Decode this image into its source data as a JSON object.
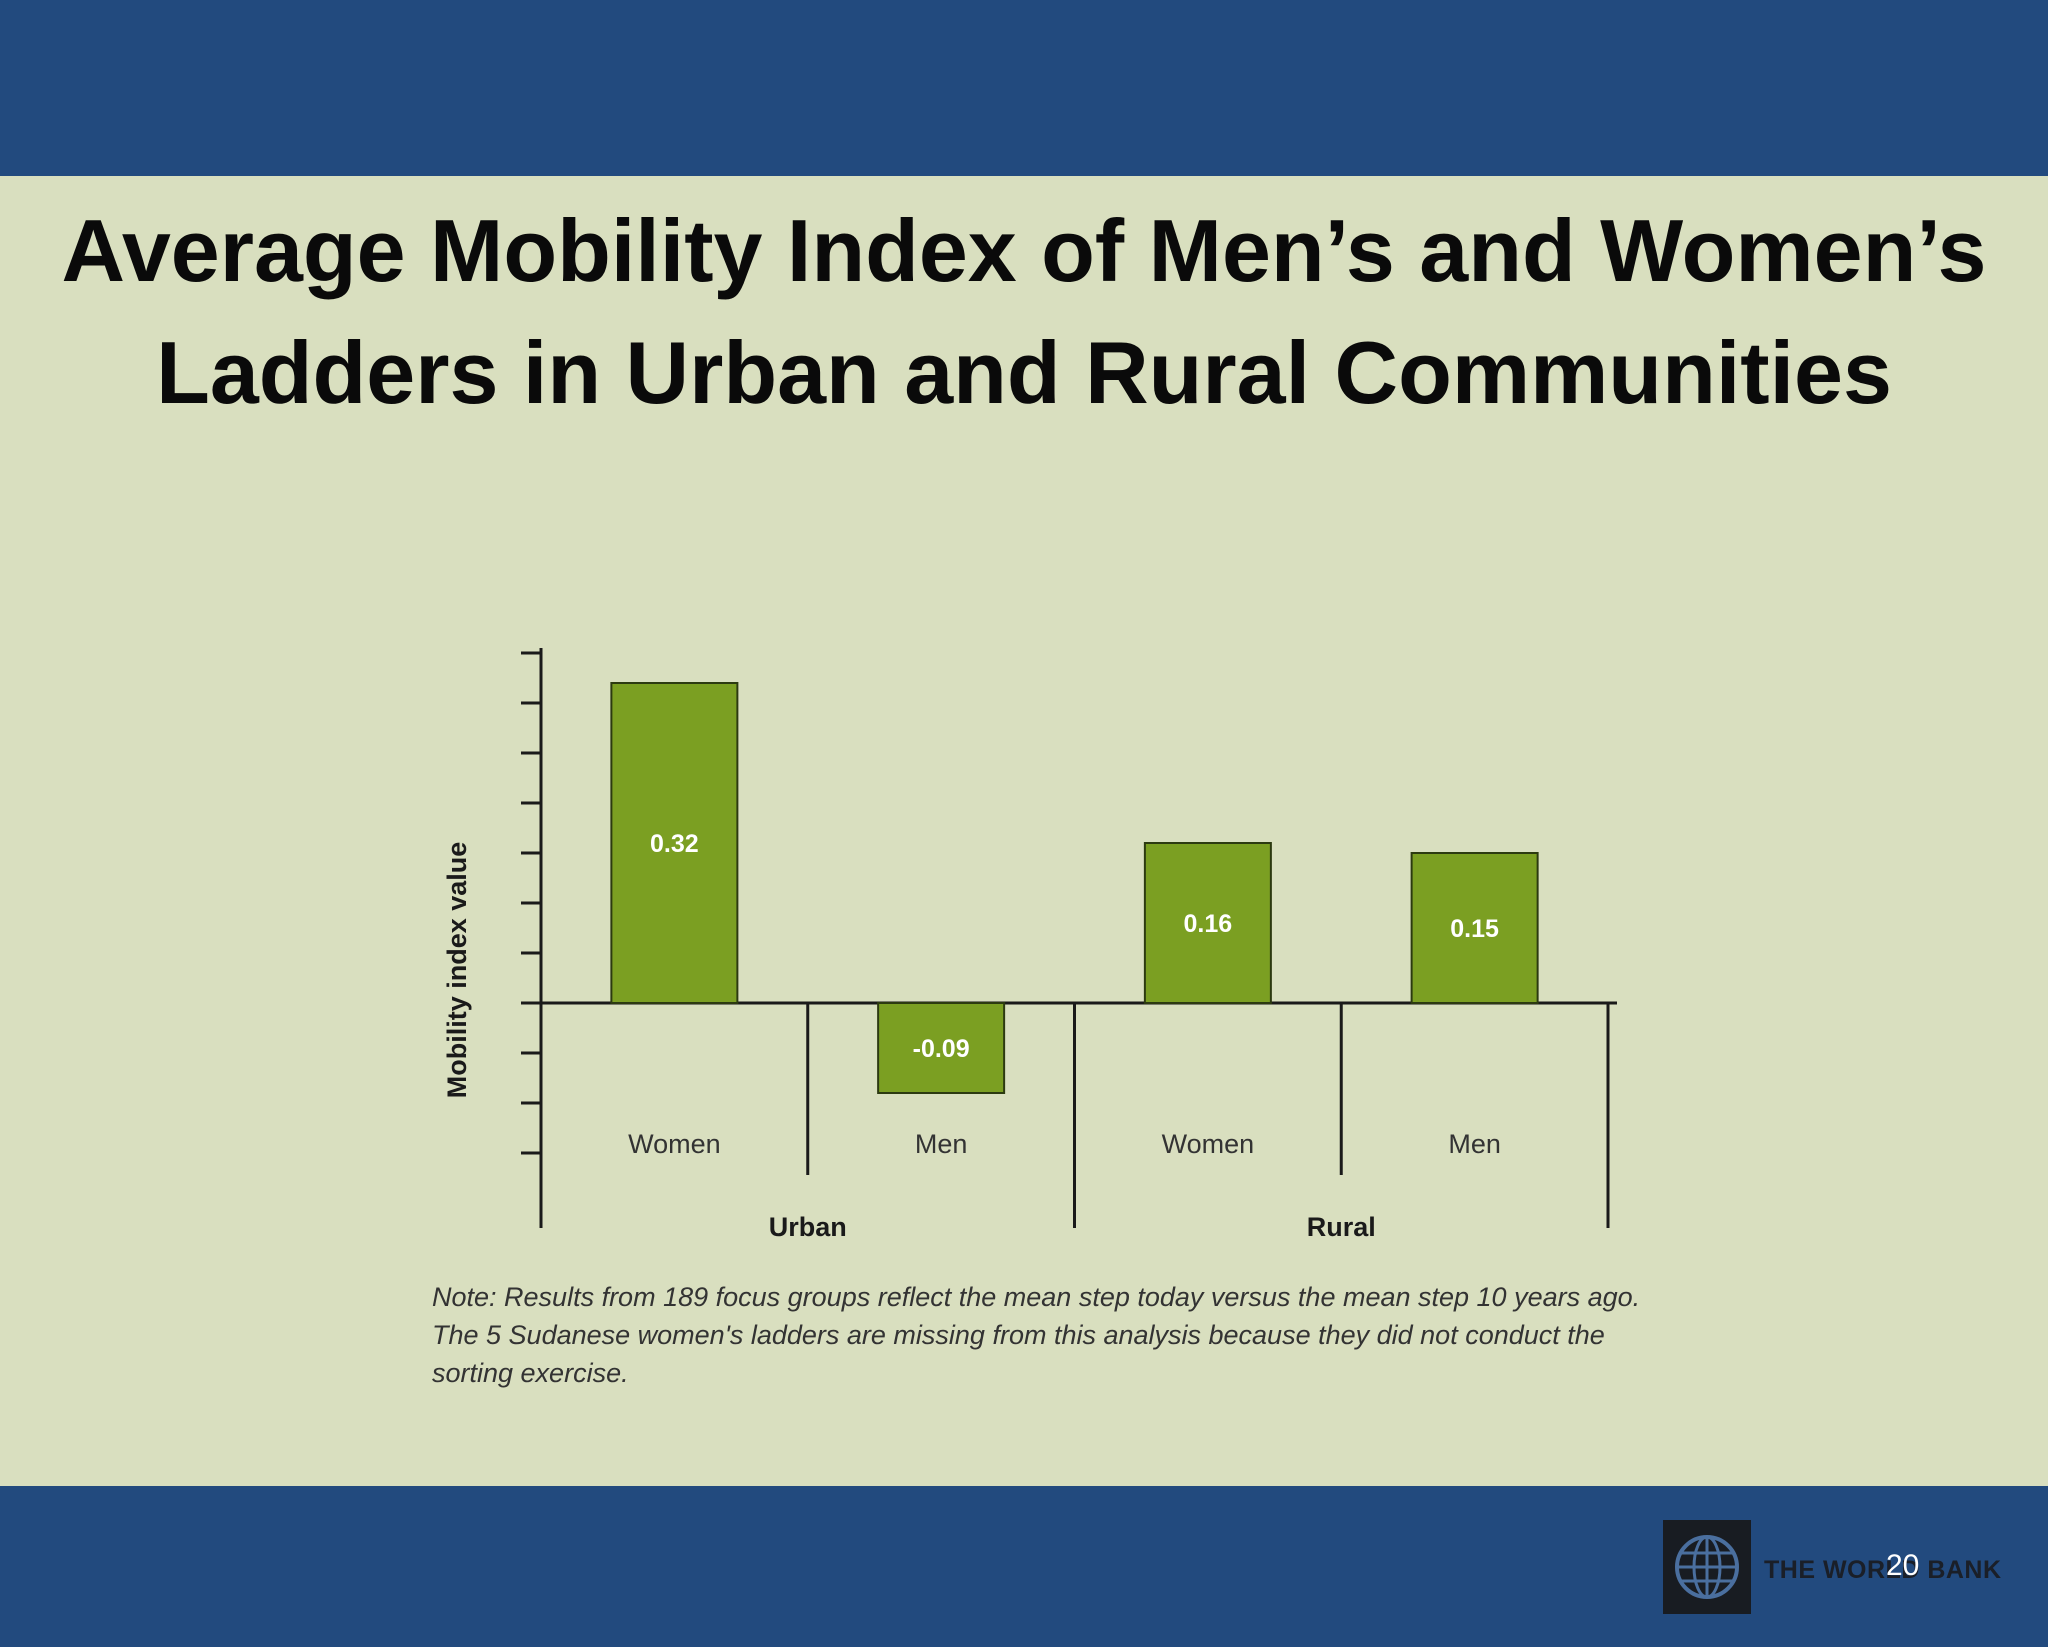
{
  "slide": {
    "title_line1": "Average Mobility Index of Men’s and Women’s",
    "title_line2": "Ladders in Urban and Rural Communities",
    "note_lines": [
      "Note: Results from 189 focus groups reflect the mean step today versus the mean step 10 years ago.",
      "The 5 Sudanese women's ladders are missing from this analysis because they did not conduct the",
      "sorting exercise."
    ],
    "brand": "THE WORLD BANK",
    "page_number": "20",
    "colors": {
      "band": "#224a7e",
      "background": "#d9dfbf",
      "bar": "#7b9f22",
      "bar_border": "#2c3a10"
    },
    "logo_icon": "globe-icon"
  },
  "chart_data": {
    "type": "bar",
    "title": "",
    "ylabel": "Mobility index value",
    "xlabel": "",
    "ylim": [
      -0.15,
      0.35
    ],
    "groups": [
      "Urban",
      "Rural"
    ],
    "categories": [
      "Women",
      "Men",
      "Women",
      "Men"
    ],
    "category_groups": [
      "Urban",
      "Urban",
      "Rural",
      "Rural"
    ],
    "values": [
      0.32,
      -0.09,
      0.16,
      0.15
    ],
    "value_labels": [
      "0.32",
      "-0.09",
      "0.16",
      "0.15"
    ],
    "grid": false,
    "legend": "none"
  }
}
